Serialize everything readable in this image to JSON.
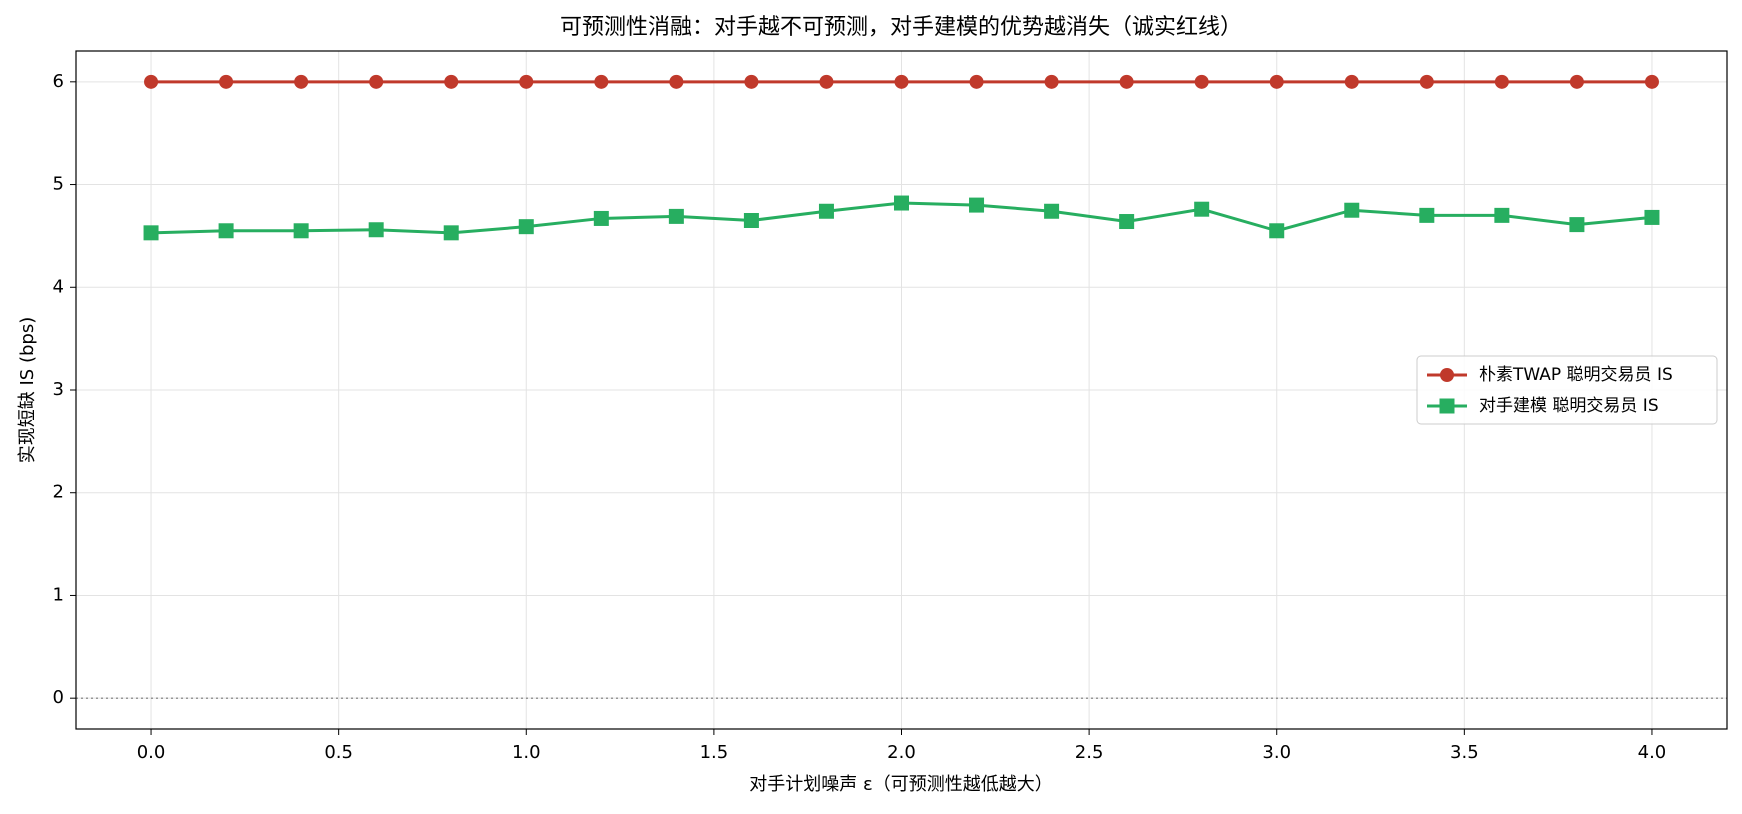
{
  "chart_data": {
    "type": "line",
    "title": "可预测性消融：对手越不可预测，对手建模的优势越消失（诚实红线）",
    "x_label": "对手计划噪声 ε（可预测性越低越大）",
    "y_label": "实现短缺 IS (bps)",
    "x": [
      0,
      0.2,
      0.4,
      0.6,
      0.8,
      1.0,
      1.2,
      1.4,
      1.6,
      1.8,
      2.0,
      2.2,
      2.4,
      2.6,
      2.8,
      3.0,
      3.2,
      3.4,
      3.6,
      3.8,
      4.0
    ],
    "series": [
      {
        "name": "朴素TWAP 聪明交易员 IS",
        "color": "#c0392b",
        "marker": "circle",
        "values": [
          6,
          6,
          6,
          6,
          6,
          6,
          6,
          6,
          6,
          6,
          6,
          6,
          6,
          6,
          6,
          6,
          6,
          6,
          6,
          6,
          6
        ]
      },
      {
        "name": "对手建模 聪明交易员 IS",
        "color": "#27ae60",
        "marker": "square",
        "values": [
          4.53,
          4.55,
          4.55,
          4.56,
          4.53,
          4.59,
          4.67,
          4.69,
          4.65,
          4.74,
          4.82,
          4.8,
          4.74,
          4.64,
          4.76,
          4.55,
          4.75,
          4.7,
          4.7,
          4.61,
          4.68
        ]
      }
    ],
    "xlim": [
      -0.2,
      4.2
    ],
    "ylim": [
      -0.3,
      6.3
    ],
    "xticks": [
      {
        "value": 0,
        "label": "0.0"
      },
      0.5,
      {
        "value": 1,
        "label": "1.0"
      },
      1.5,
      {
        "value": 2,
        "label": "2.0"
      },
      2.5,
      {
        "value": 3,
        "label": "3.0"
      },
      3.5,
      {
        "value": 4,
        "label": "4.0"
      }
    ],
    "yticks": [
      0,
      1,
      2,
      3,
      4,
      5,
      6
    ],
    "hline": 0,
    "grid": true,
    "legend": "center right"
  }
}
